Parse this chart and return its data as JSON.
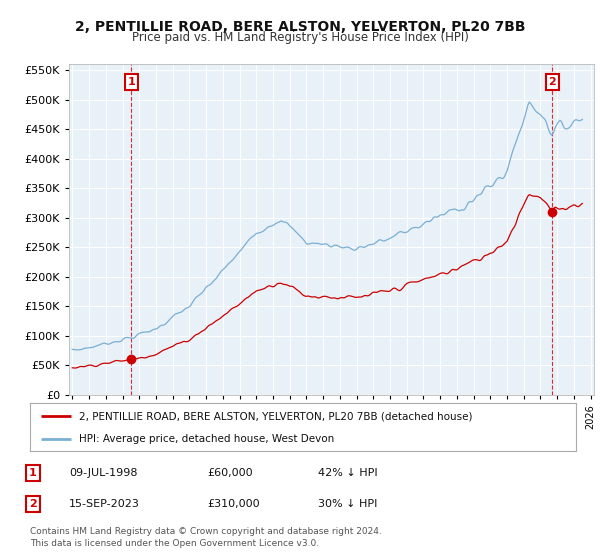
{
  "title": "2, PENTILLIE ROAD, BERE ALSTON, YELVERTON, PL20 7BB",
  "subtitle": "Price paid vs. HM Land Registry's House Price Index (HPI)",
  "title_fontsize": 10,
  "subtitle_fontsize": 8.5,
  "bg_color": "#ffffff",
  "plot_bg_color": "#e8f0f8",
  "grid_color": "#ffffff",
  "hpi_color": "#7ab0d4",
  "price_color": "#cc0000",
  "sale1_date": 1998.53,
  "sale1_price": 60000,
  "sale1_label": "1",
  "sale2_date": 2023.71,
  "sale2_price": 310000,
  "sale2_label": "2",
  "ylim": [
    0,
    560000
  ],
  "xlim": [
    1994.8,
    2026.2
  ],
  "yticks": [
    0,
    50000,
    100000,
    150000,
    200000,
    250000,
    300000,
    350000,
    400000,
    450000,
    500000,
    550000
  ],
  "legend_line1": "2, PENTILLIE ROAD, BERE ALSTON, YELVERTON, PL20 7BB (detached house)",
  "legend_line2": "HPI: Average price, detached house, West Devon",
  "table_row1": [
    "1",
    "09-JUL-1998",
    "£60,000",
    "42% ↓ HPI"
  ],
  "table_row2": [
    "2",
    "15-SEP-2023",
    "£310,000",
    "30% ↓ HPI"
  ],
  "footer": "Contains HM Land Registry data © Crown copyright and database right 2024.\nThis data is licensed under the Open Government Licence v3.0."
}
